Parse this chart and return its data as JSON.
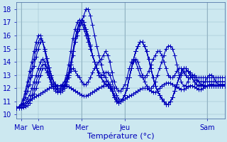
{
  "bg_color": "#cce8f0",
  "grid_color": "#99bbcc",
  "line_color": "#0000bb",
  "marker": "+",
  "markersize": 4,
  "linewidth": 0.8,
  "xlabel": "Température (°c)",
  "xlabel_fontsize": 8,
  "tick_fontsize": 7,
  "yticks": [
    10,
    11,
    12,
    13,
    14,
    15,
    16,
    17,
    18
  ],
  "ylim": [
    9.7,
    18.5
  ],
  "n_points": 97,
  "xlim": [
    0,
    96
  ],
  "xtick_positions": [
    2,
    10,
    30,
    50,
    88
  ],
  "xtick_labels": [
    "Mar",
    "Ven",
    "Mer",
    "Jeu",
    "Sam"
  ],
  "day_lines": [
    2,
    30,
    50,
    88
  ],
  "series": [
    {
      "start": 10.5,
      "points": [
        10.5,
        10.6,
        10.7,
        10.8,
        10.9,
        11.0,
        11.1,
        11.2,
        11.3,
        11.4,
        11.5,
        11.6,
        11.7,
        11.8,
        11.9,
        12.0,
        12.1,
        12.15,
        12.2,
        12.2,
        12.2,
        12.2,
        12.2,
        12.2,
        12.1,
        12.0,
        11.9,
        11.8,
        11.7,
        11.6,
        11.5,
        11.4,
        11.4,
        11.5,
        11.6,
        11.7,
        11.8,
        11.9,
        12.0,
        12.1,
        12.2,
        12.3,
        12.3,
        12.2,
        11.9,
        11.5,
        11.2,
        11.0,
        11.0,
        11.1,
        11.2,
        11.3,
        11.4,
        11.5,
        11.6,
        11.7,
        11.8,
        11.9,
        12.0,
        12.0,
        12.0,
        11.9,
        11.8,
        11.7,
        11.7,
        11.8,
        12.0,
        12.2,
        12.3,
        12.4,
        12.4,
        12.4,
        12.3,
        12.2,
        12.1,
        12.0,
        11.9,
        11.9,
        12.0,
        12.1,
        12.2,
        12.2,
        12.1,
        12.0,
        11.9,
        11.9,
        12.0,
        12.1,
        12.2,
        12.3,
        12.3,
        12.3,
        12.2,
        12.2,
        12.2,
        12.2,
        12.2
      ]
    },
    {
      "start": 10.5,
      "points": [
        10.5,
        10.6,
        10.8,
        11.2,
        11.8,
        12.5,
        13.3,
        14.0,
        14.8,
        15.5,
        16.0,
        16.0,
        15.5,
        14.8,
        14.0,
        13.3,
        12.8,
        12.5,
        12.3,
        12.2,
        12.2,
        12.3,
        12.5,
        12.8,
        13.0,
        13.3,
        13.5,
        13.3,
        13.0,
        12.8,
        12.5,
        12.3,
        12.3,
        12.5,
        12.8,
        13.2,
        13.5,
        13.8,
        14.0,
        14.2,
        14.5,
        14.8,
        14.5,
        14.0,
        13.2,
        12.5,
        12.0,
        11.8,
        11.8,
        12.0,
        12.3,
        12.8,
        13.5,
        14.0,
        14.2,
        14.0,
        13.5,
        13.0,
        12.8,
        12.8,
        13.0,
        13.3,
        13.8,
        14.2,
        14.5,
        14.8,
        14.8,
        14.5,
        14.0,
        13.5,
        13.0,
        12.8,
        12.8,
        13.0,
        13.3,
        13.5,
        13.5,
        13.3,
        13.0,
        12.8,
        12.8,
        12.8,
        12.8,
        12.8,
        12.8,
        12.8,
        12.8,
        12.8,
        12.8,
        12.8,
        12.8,
        12.8,
        12.8,
        12.8,
        12.8,
        12.8,
        12.8
      ]
    },
    {
      "start": 10.5,
      "points": [
        10.5,
        10.6,
        10.8,
        11.1,
        11.6,
        12.2,
        12.8,
        13.5,
        14.2,
        15.0,
        15.5,
        15.8,
        15.5,
        15.0,
        14.3,
        13.6,
        13.0,
        12.5,
        12.2,
        12.0,
        12.0,
        12.1,
        12.3,
        12.7,
        13.2,
        14.0,
        14.8,
        15.5,
        16.0,
        16.5,
        17.0,
        17.5,
        18.0,
        18.0,
        17.5,
        16.8,
        16.0,
        15.2,
        14.5,
        13.8,
        13.2,
        12.8,
        12.5,
        12.2,
        11.8,
        11.3,
        11.0,
        10.9,
        11.0,
        11.2,
        11.5,
        12.0,
        12.8,
        13.5,
        14.0,
        14.2,
        14.0,
        13.5,
        13.0,
        12.5,
        12.2,
        12.0,
        12.0,
        12.2,
        12.5,
        13.0,
        13.5,
        14.0,
        14.5,
        15.0,
        15.2,
        15.2,
        15.0,
        14.5,
        13.8,
        13.0,
        12.5,
        12.2,
        12.2,
        12.5,
        12.8,
        13.0,
        13.0,
        12.8,
        12.5,
        12.3,
        12.3,
        12.5,
        12.8,
        13.0,
        13.0,
        12.8,
        12.5,
        12.3,
        12.3,
        12.3,
        12.3
      ]
    },
    {
      "start": 10.5,
      "points": [
        10.5,
        10.6,
        10.7,
        10.9,
        11.3,
        11.8,
        12.3,
        13.0,
        13.7,
        14.4,
        15.0,
        15.5,
        15.5,
        15.0,
        14.3,
        13.6,
        13.0,
        12.5,
        12.2,
        12.0,
        12.0,
        12.2,
        12.5,
        13.0,
        13.8,
        14.8,
        15.8,
        16.5,
        17.0,
        17.2,
        17.0,
        16.5,
        16.0,
        15.5,
        15.0,
        14.5,
        14.0,
        13.5,
        13.2,
        13.0,
        13.0,
        13.2,
        13.2,
        13.0,
        12.5,
        12.0,
        11.5,
        11.2,
        11.0,
        11.2,
        11.5,
        12.0,
        12.8,
        13.5,
        14.2,
        14.8,
        15.2,
        15.5,
        15.5,
        15.2,
        14.8,
        14.2,
        13.5,
        12.8,
        12.2,
        11.8,
        11.5,
        11.2,
        11.0,
        10.8,
        10.8,
        11.0,
        11.3,
        11.8,
        12.3,
        12.8,
        13.0,
        13.2,
        13.3,
        13.3,
        13.2,
        13.0,
        12.8,
        12.6,
        12.5,
        12.5,
        12.5,
        12.5,
        12.5,
        12.5,
        12.5,
        12.5,
        12.5,
        12.5,
        12.5,
        12.5,
        12.5
      ]
    },
    {
      "start": 10.5,
      "points": [
        10.5,
        10.55,
        10.6,
        10.7,
        10.9,
        11.2,
        11.5,
        12.0,
        12.5,
        13.0,
        13.5,
        14.0,
        14.2,
        14.0,
        13.5,
        13.0,
        12.5,
        12.2,
        12.0,
        11.9,
        11.9,
        12.0,
        12.2,
        12.5,
        13.0,
        13.8,
        14.8,
        15.8,
        16.5,
        17.0,
        17.2,
        17.0,
        16.5,
        16.0,
        15.3,
        14.5,
        14.0,
        13.5,
        13.0,
        12.8,
        12.5,
        12.5,
        12.5,
        12.3,
        12.0,
        11.5,
        11.2,
        10.9,
        11.0,
        11.2,
        11.5,
        12.0,
        12.8,
        13.5,
        14.2,
        14.8,
        15.2,
        15.5,
        15.5,
        15.2,
        14.8,
        14.2,
        13.5,
        12.8,
        12.2,
        11.8,
        11.5,
        11.2,
        11.0,
        10.8,
        10.8,
        11.0,
        11.3,
        11.8,
        12.3,
        12.8,
        13.2,
        13.5,
        13.5,
        13.3,
        13.0,
        12.8,
        12.5,
        12.3,
        12.2,
        12.2,
        12.2,
        12.2,
        12.2,
        12.2,
        12.2,
        12.2,
        12.2,
        12.2,
        12.2,
        12.2,
        12.2
      ]
    },
    {
      "start": 10.5,
      "points": [
        10.5,
        10.52,
        10.55,
        10.6,
        10.7,
        10.9,
        11.1,
        11.5,
        12.0,
        12.5,
        13.0,
        13.5,
        13.8,
        13.8,
        13.5,
        13.0,
        12.5,
        12.2,
        12.0,
        11.8,
        11.8,
        11.9,
        12.1,
        12.5,
        13.0,
        13.8,
        14.8,
        15.8,
        16.5,
        17.0,
        17.2,
        17.0,
        16.5,
        16.0,
        15.3,
        14.5,
        14.0,
        13.5,
        13.0,
        12.8,
        12.5,
        12.3,
        12.2,
        12.0,
        11.8,
        11.3,
        11.0,
        10.9,
        11.0,
        11.2,
        11.5,
        12.0,
        12.8,
        13.5,
        14.2,
        14.8,
        15.2,
        15.5,
        15.5,
        15.2,
        14.8,
        14.2,
        13.5,
        12.8,
        12.2,
        11.8,
        11.5,
        11.2,
        11.0,
        10.8,
        10.8,
        11.0,
        11.3,
        11.8,
        12.3,
        12.8,
        13.2,
        13.5,
        13.5,
        13.3,
        13.0,
        12.8,
        12.5,
        12.3,
        12.2,
        12.2,
        12.2,
        12.2,
        12.2,
        12.2,
        12.2,
        12.2,
        12.2,
        12.2,
        12.2,
        12.2,
        12.2
      ]
    },
    {
      "start": 10.5,
      "points": [
        10.5,
        10.51,
        10.52,
        10.55,
        10.6,
        10.7,
        10.9,
        11.2,
        11.6,
        12.0,
        12.5,
        13.0,
        13.5,
        13.5,
        13.2,
        12.8,
        12.3,
        12.0,
        11.8,
        11.7,
        11.7,
        11.8,
        12.0,
        12.3,
        12.8,
        13.5,
        14.5,
        15.5,
        16.3,
        16.8,
        17.0,
        16.8,
        16.3,
        15.8,
        15.2,
        14.5,
        14.0,
        13.5,
        13.0,
        12.8,
        12.5,
        12.3,
        12.2,
        12.0,
        11.8,
        11.3,
        11.0,
        10.9,
        11.0,
        11.2,
        11.5,
        12.0,
        12.8,
        13.5,
        14.2,
        14.8,
        15.2,
        15.5,
        15.5,
        15.2,
        14.8,
        14.2,
        13.5,
        12.8,
        12.2,
        11.8,
        11.5,
        11.2,
        11.0,
        10.8,
        10.8,
        11.0,
        11.3,
        11.8,
        12.3,
        12.8,
        13.2,
        13.5,
        13.5,
        13.3,
        13.0,
        12.8,
        12.5,
        12.3,
        12.2,
        12.2,
        12.2,
        12.2,
        12.2,
        12.2,
        12.2,
        12.2,
        12.2,
        12.2,
        12.2,
        12.2,
        12.2
      ]
    }
  ]
}
